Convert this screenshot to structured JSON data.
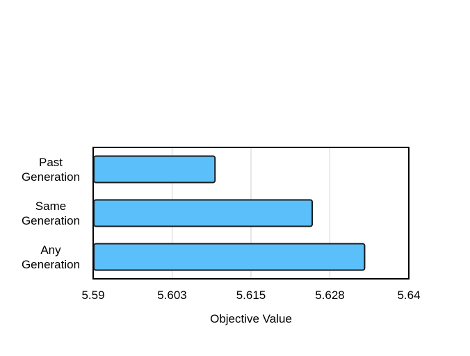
{
  "chart_data": {
    "type": "bar",
    "orientation": "horizontal",
    "categories": [
      [
        "Past",
        "Generation"
      ],
      [
        "Same",
        "Generation"
      ],
      [
        "Any",
        "Generation"
      ]
    ],
    "values": [
      5.6093,
      5.6247,
      5.633
    ],
    "xlabel": "Objective Value",
    "ylabel": "",
    "title": "",
    "xlim": [
      5.59,
      5.64
    ],
    "xticks": [
      5.59,
      5.6025,
      5.615,
      5.6275,
      5.64
    ],
    "xtick_labels": [
      "5.59",
      "5.603",
      "5.615",
      "5.628",
      "5.64"
    ],
    "grid": "vertical",
    "colors": {
      "bar_fill": "#5bbff9",
      "bar_stroke": "#1a1a1a",
      "grid": "#cfcfcf",
      "axis": "#000000"
    }
  }
}
